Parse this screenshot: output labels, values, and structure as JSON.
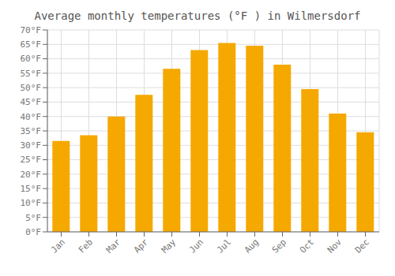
{
  "chart_data": {
    "type": "bar",
    "title": "Average monthly temperatures (°F ) in Wilmersdorf",
    "categories": [
      "Jan",
      "Feb",
      "Mar",
      "Apr",
      "May",
      "Jun",
      "Jul",
      "Aug",
      "Sep",
      "Oct",
      "Nov",
      "Dec"
    ],
    "values": [
      31.5,
      33.5,
      40.0,
      47.5,
      56.5,
      63.0,
      65.5,
      64.5,
      58.0,
      49.5,
      41.0,
      34.5
    ],
    "color": "#F5A800",
    "ylim": [
      0,
      70
    ],
    "yticks": [
      {
        "value": 0,
        "label": "0°F"
      },
      {
        "value": 5,
        "label": "5°F"
      },
      {
        "value": 10,
        "label": "10°F"
      },
      {
        "value": 15,
        "label": "15°F"
      },
      {
        "value": 20,
        "label": "20°F"
      },
      {
        "value": 25,
        "label": "25°F"
      },
      {
        "value": 30,
        "label": "30°F"
      },
      {
        "value": 35,
        "label": "35°F"
      },
      {
        "value": 40,
        "label": "40°F"
      },
      {
        "value": 45,
        "label": "45°F"
      },
      {
        "value": 50,
        "label": "50°F"
      },
      {
        "value": 55,
        "label": "55°F"
      },
      {
        "value": 60,
        "label": "60°F"
      },
      {
        "value": 65,
        "label": "65°F"
      },
      {
        "value": 70,
        "label": "70°F"
      }
    ],
    "grid": true
  }
}
